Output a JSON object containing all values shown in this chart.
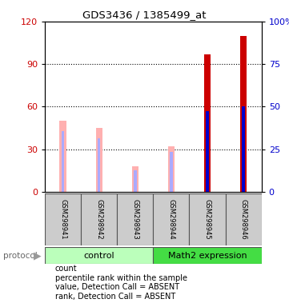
{
  "title": "GDS3436 / 1385499_at",
  "samples": [
    "GSM298941",
    "GSM298942",
    "GSM298943",
    "GSM298944",
    "GSM298945",
    "GSM298946"
  ],
  "count_values": [
    0,
    0,
    0,
    0,
    97,
    110
  ],
  "count_absent_values": [
    50,
    45,
    18,
    32,
    0,
    0
  ],
  "rank_values": [
    0,
    0,
    0,
    0,
    57,
    60
  ],
  "rank_absent_values": [
    43,
    38,
    15,
    28,
    0,
    0
  ],
  "count_color": "#cc0000",
  "count_absent_color": "#ffb0b0",
  "rank_color": "#0000cc",
  "rank_absent_color": "#aaaaff",
  "ylim_left": [
    0,
    120
  ],
  "ylim_right": [
    0,
    100
  ],
  "yticks_left": [
    0,
    30,
    60,
    90,
    120
  ],
  "yticks_right": [
    0,
    25,
    50,
    75,
    100
  ],
  "yticklabels_right": [
    "0",
    "25",
    "50",
    "75",
    "100%"
  ],
  "control_label": "control",
  "math2_label": "Math2 expression",
  "protocol_label": "protocol",
  "group_color_control": "#bbffbb",
  "group_color_math2": "#44dd44",
  "legend_items": [
    {
      "label": "count",
      "color": "#cc0000"
    },
    {
      "label": "percentile rank within the sample",
      "color": "#0000cc"
    },
    {
      "label": "value, Detection Call = ABSENT",
      "color": "#ffb0b0"
    },
    {
      "label": "rank, Detection Call = ABSENT",
      "color": "#aaaaff"
    }
  ],
  "bar_width": 0.18,
  "rank_bar_width": 0.08,
  "tick_label_color_left": "#cc0000",
  "tick_label_color_right": "#0000cc",
  "sample_box_color": "#cccccc",
  "grid_yticks": [
    30,
    60,
    90
  ]
}
